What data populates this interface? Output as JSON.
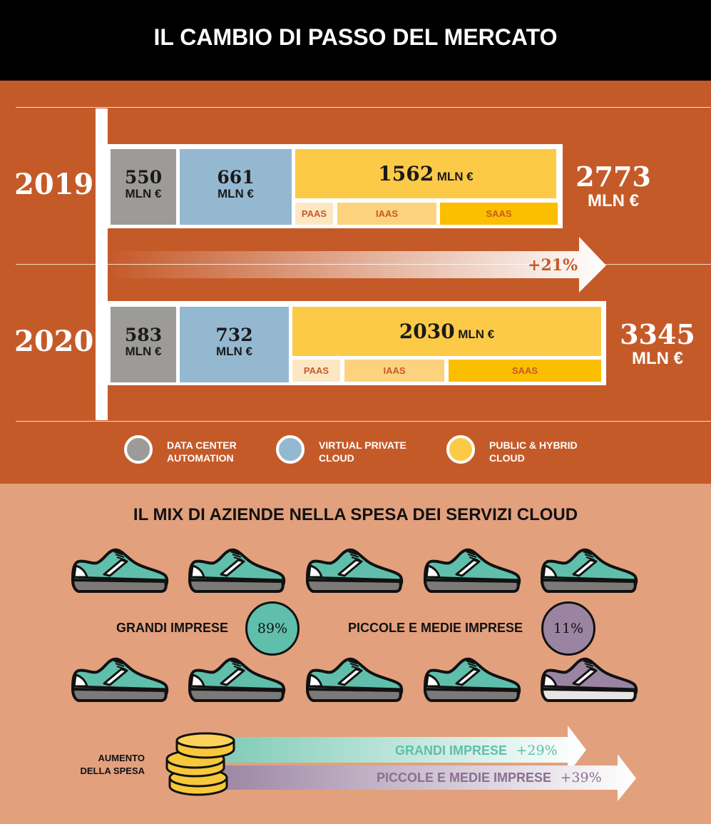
{
  "header": {
    "title": "IL CAMBIO DI PASSO DEL MERCATO"
  },
  "chart_data": {
    "type": "bar",
    "categories": [
      "2019",
      "2020"
    ],
    "series": [
      {
        "name": "DATA CENTER AUTOMATION",
        "values": [
          550,
          583
        ]
      },
      {
        "name": "VIRTUAL PRIVATE CLOUD",
        "values": [
          661,
          732
        ]
      },
      {
        "name": "PUBLIC & HYBRID CLOUD",
        "values": [
          1562,
          2030
        ]
      }
    ],
    "public_subsegments": [
      "PAAS",
      "IAAS",
      "SAAS"
    ],
    "totals": [
      2773,
      3345
    ],
    "unit": "MLN €",
    "growth": "+21%",
    "colors": {
      "data_center": "#9d9b98",
      "virtual_private": "#95b8d1",
      "public_hybrid": "#fcca47",
      "paas": "#fde7c3",
      "iaas": "#fdd27e",
      "saas": "#fcbe00"
    }
  },
  "years": {
    "y2019": {
      "year": "2019",
      "dc": "550",
      "vpc": "661",
      "pub": "1562",
      "total": "2773"
    },
    "y2020": {
      "year": "2020",
      "dc": "583",
      "vpc": "732",
      "pub": "2030",
      "total": "3345"
    }
  },
  "unit": "MLN €",
  "sub_labels": {
    "paas": "PAAS",
    "iaas": "IAAS",
    "saas": "SAAS"
  },
  "growth_label": "+21%",
  "legend": {
    "dc_line1": "DATA CENTER",
    "dc_line2": "AUTOMATION",
    "vpc_line1": "VIRTUAL PRIVATE",
    "vpc_line2": "CLOUD",
    "pub_line1": "PUBLIC & HYBRID",
    "pub_line2": "CLOUD"
  },
  "mix": {
    "title": "IL MIX DI AZIENDE NELLA SPESA DEI SERVIZI CLOUD",
    "large_label": "GRANDI IMPRESE",
    "large_pct": "89%",
    "small_label": "PICCOLE E MEDIE IMPRESE",
    "small_pct": "11%",
    "colors": {
      "large": "#5fbfaa",
      "small": "#9b84a2"
    }
  },
  "spending": {
    "label_line1": "AUMENTO",
    "label_line2": "DELLA SPESA",
    "large_label": "GRANDI IMPRESE",
    "large_pct": "+29%",
    "small_label": "PICCOLE E MEDIE IMPRESE",
    "small_pct": "+39%"
  },
  "icons": {
    "shoe": "sneaker-icon",
    "coins": "coins-icon",
    "arrow": "arrow-right-icon"
  }
}
